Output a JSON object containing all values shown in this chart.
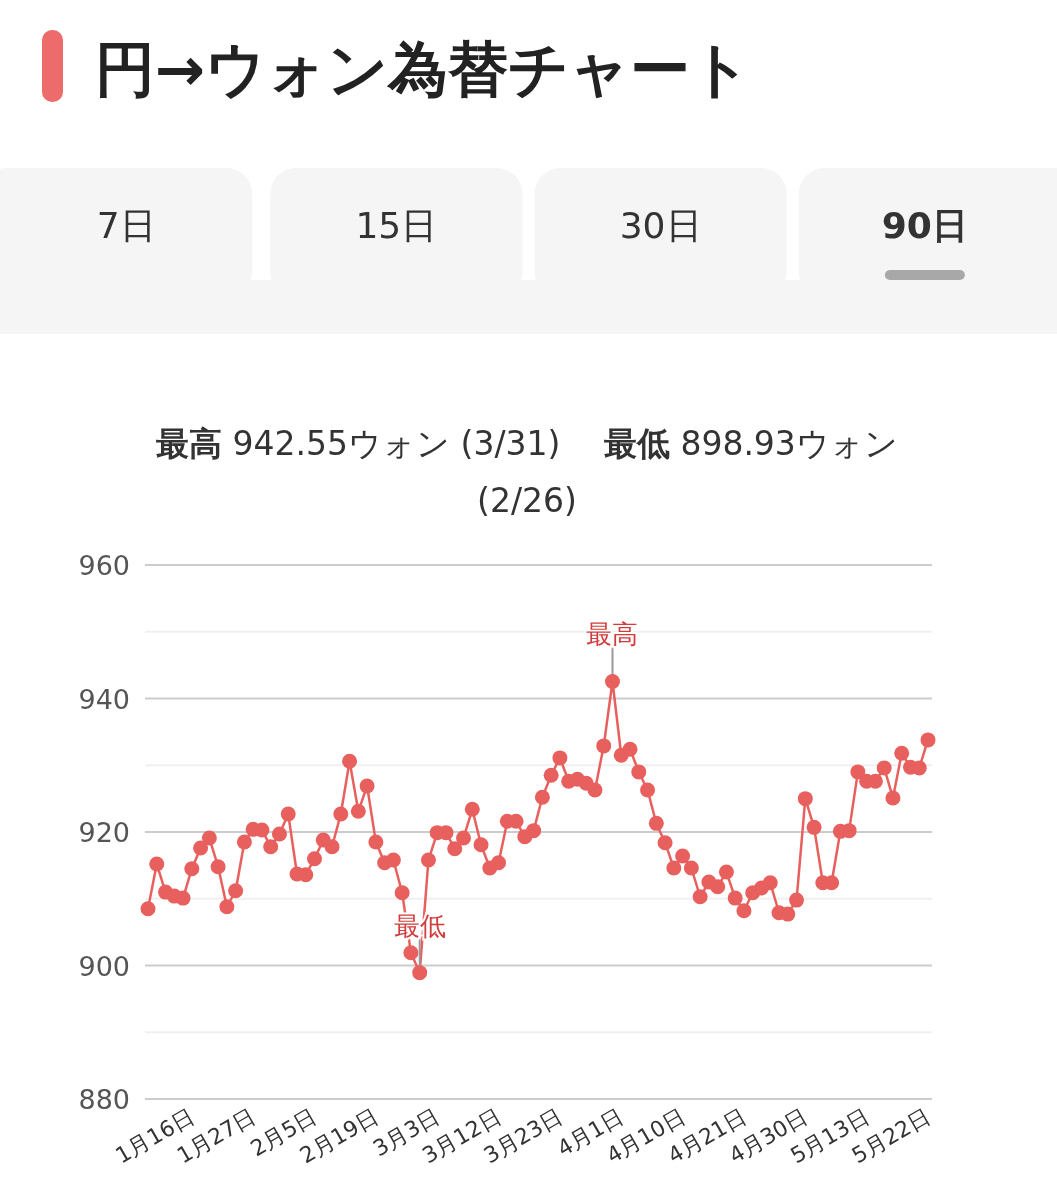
{
  "chart_data": {
    "type": "line",
    "title": "円→ウォン為替チャート",
    "subtitle": "**最高** 942.55ウォン (3/31)　 **最低** 898.93ウォン (2/26)",
    "annotations": [
      "7日",
      "15日",
      "30日",
      "90日",
      {
        "text": "最高",
        "y": 942.55
      },
      {
        "text": "最低",
        "y": 898.93
      }
    ],
    "categories": [
      null,
      null,
      null,
      null,
      null,
      "1月16日",
      null,
      null,
      null,
      null,
      null,
      null,
      "1月27日",
      null,
      null,
      null,
      null,
      null,
      null,
      "2月5日",
      null,
      null,
      null,
      null,
      null,
      null,
      "2月19日",
      null,
      null,
      null,
      null,
      null,
      null,
      "3月3日",
      null,
      null,
      null,
      null,
      null,
      null,
      "3月12日",
      null,
      null,
      null,
      null,
      null,
      null,
      "3月23日",
      null,
      null,
      null,
      null,
      null,
      null,
      "4月1日",
      null,
      null,
      null,
      null,
      null,
      null,
      "4月10日",
      null,
      null,
      null,
      null,
      null,
      null,
      "4月21日",
      null,
      null,
      null,
      null,
      null,
      null,
      "4月30日",
      null,
      null,
      null,
      null,
      null,
      null,
      "5月13日",
      null,
      null,
      null,
      null,
      null,
      null,
      "5月22日"
    ],
    "values": [
      908.5,
      915.2,
      911.0,
      910.4,
      910.1,
      914.5,
      917.6,
      919.1,
      914.8,
      908.8,
      911.2,
      918.5,
      920.4,
      920.3,
      917.8,
      919.7,
      922.7,
      913.7,
      913.6,
      916.0,
      918.8,
      917.8,
      922.7,
      930.6,
      923.1,
      926.9,
      918.5,
      915.4,
      915.8,
      910.9,
      901.9,
      898.93,
      915.8,
      919.9,
      919.9,
      917.5,
      919.1,
      923.4,
      918.1,
      914.6,
      915.4,
      921.6,
      921.6,
      919.3,
      920.2,
      925.2,
      928.5,
      931.1,
      927.6,
      927.9,
      927.3,
      926.3,
      932.9,
      942.55,
      931.5,
      932.4,
      929.0,
      926.3,
      921.3,
      918.4,
      914.6,
      916.4,
      914.6,
      910.3,
      912.5,
      911.8,
      914.0,
      910.1,
      908.2,
      910.9,
      911.6,
      912.4,
      907.9,
      907.7,
      909.8,
      925.0,
      920.7,
      912.4,
      912.4,
      920.1,
      920.2,
      929.0,
      927.6,
      927.6,
      929.6,
      925.1,
      931.8,
      929.7,
      929.6,
      933.8
    ],
    "color": "#e8605e",
    "marker": "circle",
    "line_style": "solid",
    "grid": "y",
    "ylim": [
      880,
      960
    ],
    "yticks": [
      880,
      {
        "value": 890,
        "label": null
      },
      900,
      {
        "value": 910,
        "label": null
      },
      920,
      {
        "value": 930,
        "label": null
      },
      940,
      {
        "value": 950,
        "label": null
      },
      960
    ]
  }
}
